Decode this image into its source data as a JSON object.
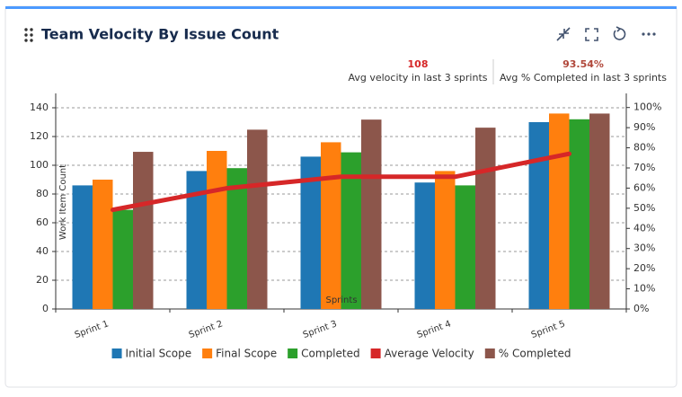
{
  "widget": {
    "title": "Team Velocity By Issue Count",
    "stats": [
      {
        "value": "108",
        "label": "Avg velocity in last 3 sprints"
      },
      {
        "value": "93.54%",
        "label": "Avg % Completed in last 3 sprints"
      }
    ]
  },
  "chart_data": {
    "type": "combo",
    "categories": [
      "Sprint 1",
      "Sprint 2",
      "Sprint 3",
      "Sprint 4",
      "Sprint 5"
    ],
    "x_label": "Sprints",
    "y_label": "Work Item Count",
    "series": [
      {
        "name": "Initial Scope",
        "type": "bar",
        "color": "#1f77b4",
        "values": [
          86,
          96,
          106,
          88,
          130
        ]
      },
      {
        "name": "Final Scope",
        "type": "bar",
        "color": "#ff7f0e",
        "values": [
          90,
          110,
          116,
          96,
          136
        ]
      },
      {
        "name": "Completed",
        "type": "bar",
        "color": "#2ca02c",
        "values": [
          69,
          98,
          109,
          86,
          132
        ]
      },
      {
        "name": "Average Velocity",
        "type": "line",
        "color": "#d62728",
        "values": [
          69,
          84,
          92,
          92,
          108
        ]
      },
      {
        "name": "% Completed",
        "type": "bar",
        "axis": "y2",
        "color": "#8c564b",
        "values": [
          78,
          89,
          94,
          90,
          97
        ]
      }
    ],
    "ylim": [
      0,
      150
    ],
    "yticks": [
      0,
      20,
      40,
      60,
      80,
      100,
      120,
      140
    ],
    "y2lim": [
      0,
      107
    ],
    "y2ticks": [
      {
        "value": 0,
        "label": "0%"
      },
      {
        "value": 10,
        "label": "10%"
      },
      {
        "value": 20,
        "label": "20%"
      },
      {
        "value": 30,
        "label": "30%"
      },
      {
        "value": 40,
        "label": "40%"
      },
      {
        "value": 50,
        "label": "50%"
      },
      {
        "value": 60,
        "label": "60%"
      },
      {
        "value": 70,
        "label": "70%"
      },
      {
        "value": 80,
        "label": "80%"
      },
      {
        "value": 90,
        "label": "90%"
      },
      {
        "value": 100,
        "label": "100%"
      }
    ],
    "grid": true,
    "legend": "bottom"
  }
}
